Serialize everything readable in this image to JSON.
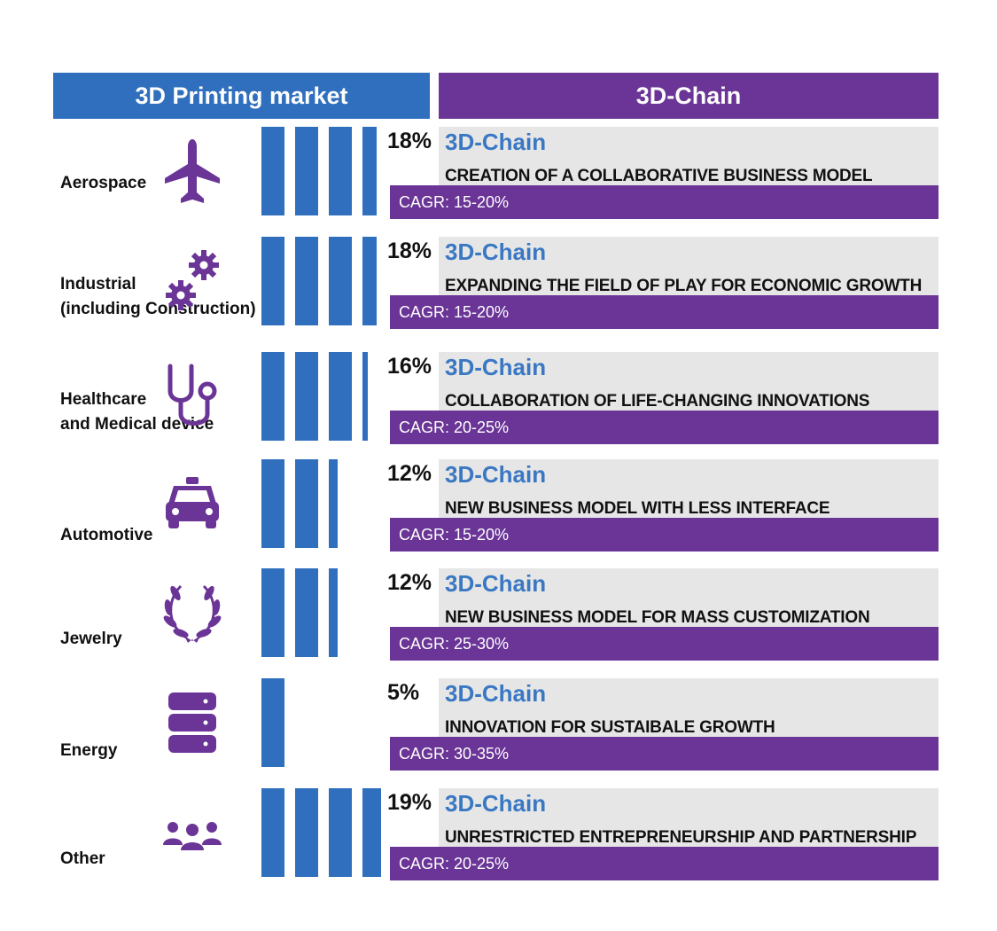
{
  "chart_data": {
    "type": "bar",
    "header_left": "3D Printing market",
    "header_right": "3D-Chain",
    "categories": [
      {
        "label": [
          "Aerospace"
        ],
        "icon": "airplane-icon",
        "share": "18%",
        "share_value": 18,
        "chain_title": "3D-Chain",
        "description": "CREATION OF A COLLABORATIVE BUSINESS MODEL",
        "cagr": "CAGR: 15-20%"
      },
      {
        "label": [
          "Industrial",
          "(including Construction)"
        ],
        "icon": "gears-icon",
        "share": "18%",
        "share_value": 18,
        "chain_title": "3D-Chain",
        "description": "EXPANDING THE FIELD OF PLAY FOR ECONOMIC GROWTH",
        "cagr": "CAGR: 15-20%"
      },
      {
        "label": [
          "Healthcare",
          "and Medical device"
        ],
        "icon": "stethoscope-icon",
        "share": "16%",
        "share_value": 16,
        "chain_title": "3D-Chain",
        "description": "COLLABORATION OF LIFE-CHANGING INNOVATIONS",
        "cagr": "CAGR: 20-25%"
      },
      {
        "label": [
          "Automotive"
        ],
        "icon": "car-icon",
        "share": "12%",
        "share_value": 12,
        "chain_title": "3D-Chain",
        "description": "NEW BUSINESS MODEL WITH LESS INTERFACE",
        "cagr": "CAGR: 15-20%"
      },
      {
        "label": [
          "Jewelry"
        ],
        "icon": "laurel-wreath-icon",
        "share": "12%",
        "share_value": 12,
        "chain_title": "3D-Chain",
        "description": "NEW BUSINESS MODEL FOR MASS CUSTOMIZATION",
        "cagr": "CAGR: 25-30%"
      },
      {
        "label": [
          "Energy"
        ],
        "icon": "database-icon",
        "share": "5%",
        "share_value": 5,
        "chain_title": "3D-Chain",
        "description": "INNOVATION FOR SUSTAIBALE GROWTH",
        "cagr": "CAGR: 30-35%"
      },
      {
        "label": [
          "Other"
        ],
        "icon": "people-group-icon",
        "share": "19%",
        "share_value": 19,
        "chain_title": "3D-Chain",
        "description": "UNRESTRICTED ENTREPRENEURSHIP AND PARTNERSHIP",
        "cagr": "CAGR: 20-25%"
      }
    ],
    "colors": {
      "blue": "#2f6fbd",
      "purple": "#6a3596",
      "chain_blue": "#3a78c3",
      "grey": "#e6e6e6"
    }
  }
}
